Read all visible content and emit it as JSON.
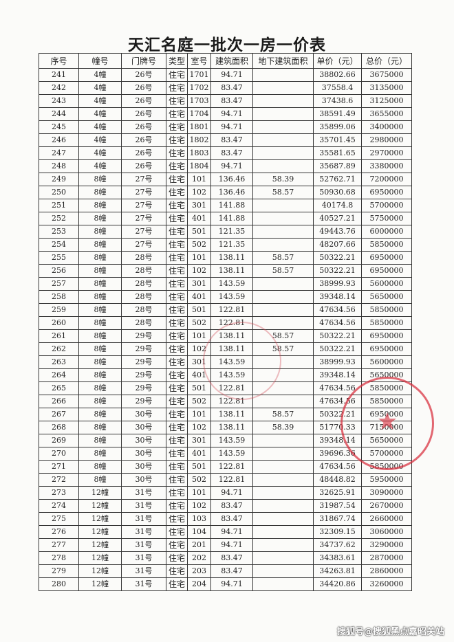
{
  "title": "天汇名庭一批次一房一价表",
  "headers": [
    "序号",
    "幢号",
    "门牌号",
    "类型",
    "室号",
    "建筑面积",
    "地下建筑面积",
    "单价（元）",
    "总价（元）"
  ],
  "rows": [
    [
      "241",
      "4幢",
      "26号",
      "住宅",
      "1701",
      "94.71",
      "",
      "38802.66",
      "3675000"
    ],
    [
      "242",
      "4幢",
      "26号",
      "住宅",
      "1702",
      "83.47",
      "",
      "37558.4",
      "3135000"
    ],
    [
      "243",
      "4幢",
      "26号",
      "住宅",
      "1703",
      "83.47",
      "",
      "37438.6",
      "3125000"
    ],
    [
      "244",
      "4幢",
      "26号",
      "住宅",
      "1704",
      "94.71",
      "",
      "38591.49",
      "3655000"
    ],
    [
      "245",
      "4幢",
      "26号",
      "住宅",
      "1801",
      "94.71",
      "",
      "35899.06",
      "3400000"
    ],
    [
      "246",
      "4幢",
      "26号",
      "住宅",
      "1802",
      "83.47",
      "",
      "35701.45",
      "2980000"
    ],
    [
      "247",
      "4幢",
      "26号",
      "住宅",
      "1803",
      "83.47",
      "",
      "35581.65",
      "2970000"
    ],
    [
      "248",
      "4幢",
      "26号",
      "住宅",
      "1804",
      "94.71",
      "",
      "35687.89",
      "3380000"
    ],
    [
      "249",
      "8幢",
      "27号",
      "住宅",
      "101",
      "136.46",
      "58.39",
      "52762.71",
      "7200000"
    ],
    [
      "250",
      "8幢",
      "27号",
      "住宅",
      "102",
      "136.46",
      "58.57",
      "50930.68",
      "6950000"
    ],
    [
      "251",
      "8幢",
      "27号",
      "住宅",
      "301",
      "141.88",
      "",
      "40174.8",
      "5700000"
    ],
    [
      "252",
      "8幢",
      "27号",
      "住宅",
      "401",
      "141.88",
      "",
      "40527.21",
      "5750000"
    ],
    [
      "253",
      "8幢",
      "27号",
      "住宅",
      "501",
      "121.35",
      "",
      "49443.76",
      "6000000"
    ],
    [
      "254",
      "8幢",
      "27号",
      "住宅",
      "502",
      "121.35",
      "",
      "48207.66",
      "5850000"
    ],
    [
      "255",
      "8幢",
      "28号",
      "住宅",
      "101",
      "138.11",
      "58.57",
      "50322.21",
      "6950000"
    ],
    [
      "256",
      "8幢",
      "28号",
      "住宅",
      "102",
      "138.11",
      "58.57",
      "50322.21",
      "6950000"
    ],
    [
      "257",
      "8幢",
      "28号",
      "住宅",
      "301",
      "143.59",
      "",
      "38999.93",
      "5600000"
    ],
    [
      "258",
      "8幢",
      "28号",
      "住宅",
      "401",
      "143.59",
      "",
      "39348.14",
      "5650000"
    ],
    [
      "259",
      "8幢",
      "28号",
      "住宅",
      "501",
      "122.81",
      "",
      "47634.56",
      "5850000"
    ],
    [
      "260",
      "8幢",
      "28号",
      "住宅",
      "502",
      "122.81",
      "",
      "47634.56",
      "5850000"
    ],
    [
      "261",
      "8幢",
      "29号",
      "住宅",
      "101",
      "138.11",
      "58.57",
      "50322.21",
      "6950000"
    ],
    [
      "262",
      "8幢",
      "29号",
      "住宅",
      "102",
      "138.11",
      "58.57",
      "50322.21",
      "6950000"
    ],
    [
      "263",
      "8幢",
      "29号",
      "住宅",
      "301",
      "143.59",
      "",
      "38999.93",
      "5600000"
    ],
    [
      "264",
      "8幢",
      "29号",
      "住宅",
      "401",
      "143.59",
      "",
      "39348.14",
      "5650000"
    ],
    [
      "265",
      "8幢",
      "29号",
      "住宅",
      "501",
      "122.81",
      "",
      "47634.56",
      "5850000"
    ],
    [
      "266",
      "8幢",
      "29号",
      "住宅",
      "502",
      "122.81",
      "",
      "47634.56",
      "5850000"
    ],
    [
      "267",
      "8幢",
      "30号",
      "住宅",
      "101",
      "138.11",
      "58.57",
      "50322.21",
      "6950000"
    ],
    [
      "268",
      "8幢",
      "30号",
      "住宅",
      "102",
      "138.11",
      "58.39",
      "51770.33",
      "7150000"
    ],
    [
      "269",
      "8幢",
      "30号",
      "住宅",
      "301",
      "143.59",
      "",
      "39348.14",
      "5650000"
    ],
    [
      "270",
      "8幢",
      "30号",
      "住宅",
      "401",
      "143.59",
      "",
      "39696.36",
      "5700000"
    ],
    [
      "271",
      "8幢",
      "30号",
      "住宅",
      "501",
      "122.81",
      "",
      "47634.56",
      "5850000"
    ],
    [
      "272",
      "8幢",
      "30号",
      "住宅",
      "502",
      "122.81",
      "",
      "48448.82",
      "5950000"
    ],
    [
      "273",
      "12幢",
      "31号",
      "住宅",
      "101",
      "94.71",
      "",
      "32625.91",
      "3090000"
    ],
    [
      "274",
      "12幢",
      "31号",
      "住宅",
      "102",
      "83.47",
      "",
      "31987.54",
      "2670000"
    ],
    [
      "275",
      "12幢",
      "31号",
      "住宅",
      "103",
      "83.47",
      "",
      "31867.74",
      "2660000"
    ],
    [
      "276",
      "12幢",
      "31号",
      "住宅",
      "104",
      "94.71",
      "",
      "32309.15",
      "3060000"
    ],
    [
      "277",
      "12幢",
      "31号",
      "住宅",
      "201",
      "94.71",
      "",
      "34737.62",
      "3290000"
    ],
    [
      "278",
      "12幢",
      "31号",
      "住宅",
      "202",
      "83.47",
      "",
      "34383.61",
      "2870000"
    ],
    [
      "279",
      "12幢",
      "31号",
      "住宅",
      "203",
      "83.47",
      "",
      "34263.81",
      "2860000"
    ],
    [
      "280",
      "12幢",
      "31号",
      "住宅",
      "204",
      "94.71",
      "",
      "34420.86",
      "3260000"
    ]
  ],
  "watermark": "搜狐号@搜狐黑点嘉昭关站",
  "stamp_color": "#d72837"
}
